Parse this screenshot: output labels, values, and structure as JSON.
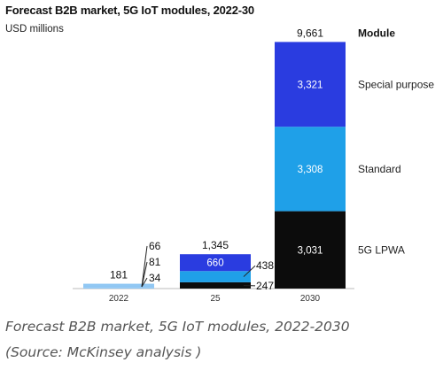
{
  "header": {
    "title": "Forecast B2B market, 5G IoT modules, 2022-30",
    "unit": "USD millions"
  },
  "caption": {
    "line1": "Forecast B2B market, 5G IoT modules, 2022-2030",
    "line2": "(Source: McKinsey analysis )"
  },
  "colors": {
    "special_purpose": "#2a3ce0",
    "standard": "#1fa0e8",
    "lpwa": "#0c0c0c",
    "small_bar": "#8ec6f3"
  },
  "chart_data": {
    "type": "bar",
    "stacked": true,
    "title": "Forecast B2B market, 5G IoT modules, 2022-30",
    "ylabel": "USD millions",
    "legend_title": "Module",
    "legend_placement": "right",
    "categories": [
      "2022",
      "25",
      "2030"
    ],
    "totals": [
      "181",
      "1,345",
      "9,661"
    ],
    "series": [
      {
        "name": "5G LPWA",
        "values": [
          34,
          247,
          3031
        ],
        "labels": [
          "34",
          "247",
          "3,031"
        ],
        "color": "#0c0c0c"
      },
      {
        "name": "Standard",
        "values": [
          81,
          438,
          3308
        ],
        "labels": [
          "81",
          "438",
          "3,308"
        ],
        "color": "#1fa0e8"
      },
      {
        "name": "Special purpose",
        "values": [
          66,
          660,
          3321
        ],
        "labels": [
          "66",
          "660",
          "3,321"
        ],
        "color": "#2a3ce0"
      }
    ]
  }
}
